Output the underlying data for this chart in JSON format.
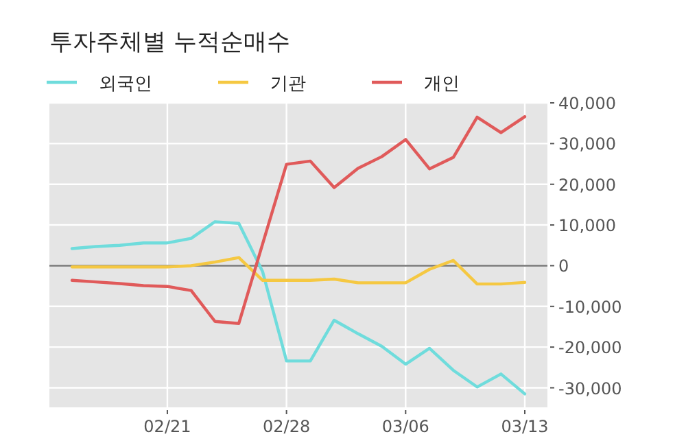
{
  "chart_data": {
    "type": "line",
    "title": "투자주체별 누적순매수",
    "legend": "top left",
    "grid": true,
    "categories": [
      null,
      null,
      null,
      null,
      "02/21",
      null,
      null,
      null,
      null,
      "02/28",
      null,
      null,
      null,
      null,
      "03/06",
      null,
      null,
      null,
      null,
      "03/13"
    ],
    "ylim": [
      -34800,
      40000
    ],
    "yticks": [
      {
        "value": -30000,
        "label": "-30,000"
      },
      {
        "value": -20000,
        "label": "-20,000"
      },
      {
        "value": -10000,
        "label": "-10,000"
      },
      0,
      {
        "value": 10000,
        "label": "10,000"
      },
      {
        "value": 20000,
        "label": "20,000"
      },
      {
        "value": 30000,
        "label": "30,000"
      },
      {
        "value": 40000,
        "label": "40,000"
      }
    ],
    "ref_lines": [
      {
        "axis": "y",
        "value": 0,
        "color": "#777777"
      }
    ],
    "series": [
      {
        "name": "외국인",
        "color": "#6fdcdc",
        "values": [
          4200,
          4700,
          5000,
          5600,
          5600,
          6700,
          10800,
          10400,
          -1500,
          -23400,
          -23400,
          -13400,
          -16700,
          -19800,
          -24200,
          -20300,
          -25700,
          -29800,
          -26600,
          -31500
        ]
      },
      {
        "name": "기관",
        "color": "#f5c842",
        "values": [
          -300,
          -300,
          -300,
          -300,
          -300,
          0,
          900,
          2000,
          -3600,
          -3600,
          -3600,
          -3300,
          -4200,
          -4200,
          -4200,
          -900,
          1300,
          -4500,
          -4500,
          -4100
        ]
      },
      {
        "name": "개인",
        "color": "#e05a5a",
        "values": [
          -3600,
          -4000,
          -4400,
          -4900,
          -5100,
          -6100,
          -13700,
          -14200,
          5400,
          24900,
          25700,
          19200,
          23900,
          26800,
          31000,
          23800,
          26600,
          36500,
          32700,
          36600
        ]
      }
    ]
  }
}
